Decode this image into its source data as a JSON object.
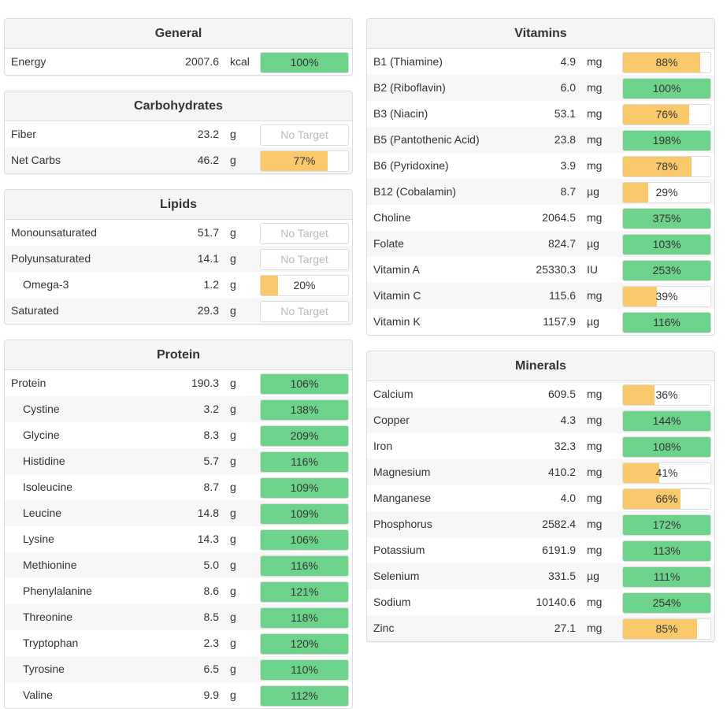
{
  "colors": {
    "green": "#6ed38a",
    "yellow": "#f9c96b",
    "no_target_text": "#bbbbbb"
  },
  "no_target_label": "No Target",
  "left": [
    {
      "id": "general",
      "title": "General",
      "rows": [
        {
          "name": "Energy",
          "amount": "2007.6",
          "unit": "kcal",
          "pct": "100%",
          "level": 1.0,
          "color": "green"
        }
      ]
    },
    {
      "id": "carbohydrates",
      "title": "Carbohydrates",
      "rows": [
        {
          "name": "Fiber",
          "amount": "23.2",
          "unit": "g",
          "pct": null
        },
        {
          "name": "Net Carbs",
          "amount": "46.2",
          "unit": "g",
          "pct": "77%",
          "level": 0.77,
          "color": "yellow"
        }
      ]
    },
    {
      "id": "lipids",
      "title": "Lipids",
      "rows": [
        {
          "name": "Monounsaturated",
          "amount": "51.7",
          "unit": "g",
          "pct": null
        },
        {
          "name": "Polyunsaturated",
          "amount": "14.1",
          "unit": "g",
          "pct": null
        },
        {
          "name": "Omega-3",
          "amount": "1.2",
          "unit": "g",
          "pct": "20%",
          "level": 0.2,
          "color": "yellow",
          "sub": true
        },
        {
          "name": "Saturated",
          "amount": "29.3",
          "unit": "g",
          "pct": null
        }
      ]
    },
    {
      "id": "protein",
      "title": "Protein",
      "rows": [
        {
          "name": "Protein",
          "amount": "190.3",
          "unit": "g",
          "pct": "106%",
          "level": 1.0,
          "color": "green"
        },
        {
          "name": "Cystine",
          "amount": "3.2",
          "unit": "g",
          "pct": "138%",
          "level": 1.0,
          "color": "green",
          "sub": true
        },
        {
          "name": "Glycine",
          "amount": "8.3",
          "unit": "g",
          "pct": "209%",
          "level": 1.0,
          "color": "green",
          "sub": true
        },
        {
          "name": "Histidine",
          "amount": "5.7",
          "unit": "g",
          "pct": "116%",
          "level": 1.0,
          "color": "green",
          "sub": true
        },
        {
          "name": "Isoleucine",
          "amount": "8.7",
          "unit": "g",
          "pct": "109%",
          "level": 1.0,
          "color": "green",
          "sub": true
        },
        {
          "name": "Leucine",
          "amount": "14.8",
          "unit": "g",
          "pct": "109%",
          "level": 1.0,
          "color": "green",
          "sub": true
        },
        {
          "name": "Lysine",
          "amount": "14.3",
          "unit": "g",
          "pct": "106%",
          "level": 1.0,
          "color": "green",
          "sub": true
        },
        {
          "name": "Methionine",
          "amount": "5.0",
          "unit": "g",
          "pct": "116%",
          "level": 1.0,
          "color": "green",
          "sub": true
        },
        {
          "name": "Phenylalanine",
          "amount": "8.6",
          "unit": "g",
          "pct": "121%",
          "level": 1.0,
          "color": "green",
          "sub": true
        },
        {
          "name": "Threonine",
          "amount": "8.5",
          "unit": "g",
          "pct": "118%",
          "level": 1.0,
          "color": "green",
          "sub": true
        },
        {
          "name": "Tryptophan",
          "amount": "2.3",
          "unit": "g",
          "pct": "120%",
          "level": 1.0,
          "color": "green",
          "sub": true
        },
        {
          "name": "Tyrosine",
          "amount": "6.5",
          "unit": "g",
          "pct": "110%",
          "level": 1.0,
          "color": "green",
          "sub": true
        },
        {
          "name": "Valine",
          "amount": "9.9",
          "unit": "g",
          "pct": "112%",
          "level": 1.0,
          "color": "green",
          "sub": true
        }
      ]
    }
  ],
  "right": [
    {
      "id": "vitamins",
      "title": "Vitamins",
      "rows": [
        {
          "name": "B1 (Thiamine)",
          "amount": "4.9",
          "unit": "mg",
          "pct": "88%",
          "level": 0.88,
          "color": "yellow"
        },
        {
          "name": "B2 (Riboflavin)",
          "amount": "6.0",
          "unit": "mg",
          "pct": "100%",
          "level": 1.0,
          "color": "green"
        },
        {
          "name": "B3 (Niacin)",
          "amount": "53.1",
          "unit": "mg",
          "pct": "76%",
          "level": 0.76,
          "color": "yellow"
        },
        {
          "name": "B5 (Pantothenic Acid)",
          "amount": "23.8",
          "unit": "mg",
          "pct": "198%",
          "level": 1.0,
          "color": "green"
        },
        {
          "name": "B6 (Pyridoxine)",
          "amount": "3.9",
          "unit": "mg",
          "pct": "78%",
          "level": 0.78,
          "color": "yellow"
        },
        {
          "name": "B12 (Cobalamin)",
          "amount": "8.7",
          "unit": "µg",
          "pct": "29%",
          "level": 0.29,
          "color": "yellow"
        },
        {
          "name": "Choline",
          "amount": "2064.5",
          "unit": "mg",
          "pct": "375%",
          "level": 1.0,
          "color": "green"
        },
        {
          "name": "Folate",
          "amount": "824.7",
          "unit": "µg",
          "pct": "103%",
          "level": 1.0,
          "color": "green"
        },
        {
          "name": "Vitamin A",
          "amount": "25330.3",
          "unit": "IU",
          "pct": "253%",
          "level": 1.0,
          "color": "green"
        },
        {
          "name": "Vitamin C",
          "amount": "115.6",
          "unit": "mg",
          "pct": "39%",
          "level": 0.39,
          "color": "yellow"
        },
        {
          "name": "Vitamin K",
          "amount": "1157.9",
          "unit": "µg",
          "pct": "116%",
          "level": 1.0,
          "color": "green"
        }
      ]
    },
    {
      "id": "minerals",
      "title": "Minerals",
      "rows": [
        {
          "name": "Calcium",
          "amount": "609.5",
          "unit": "mg",
          "pct": "36%",
          "level": 0.36,
          "color": "yellow"
        },
        {
          "name": "Copper",
          "amount": "4.3",
          "unit": "mg",
          "pct": "144%",
          "level": 1.0,
          "color": "green"
        },
        {
          "name": "Iron",
          "amount": "32.3",
          "unit": "mg",
          "pct": "108%",
          "level": 1.0,
          "color": "green"
        },
        {
          "name": "Magnesium",
          "amount": "410.2",
          "unit": "mg",
          "pct": "41%",
          "level": 0.41,
          "color": "yellow"
        },
        {
          "name": "Manganese",
          "amount": "4.0",
          "unit": "mg",
          "pct": "66%",
          "level": 0.66,
          "color": "yellow"
        },
        {
          "name": "Phosphorus",
          "amount": "2582.4",
          "unit": "mg",
          "pct": "172%",
          "level": 1.0,
          "color": "green"
        },
        {
          "name": "Potassium",
          "amount": "6191.9",
          "unit": "mg",
          "pct": "113%",
          "level": 1.0,
          "color": "green"
        },
        {
          "name": "Selenium",
          "amount": "331.5",
          "unit": "µg",
          "pct": "111%",
          "level": 1.0,
          "color": "green"
        },
        {
          "name": "Sodium",
          "amount": "10140.6",
          "unit": "mg",
          "pct": "254%",
          "level": 1.0,
          "color": "green"
        },
        {
          "name": "Zinc",
          "amount": "27.1",
          "unit": "mg",
          "pct": "85%",
          "level": 0.85,
          "color": "yellow"
        }
      ]
    }
  ]
}
